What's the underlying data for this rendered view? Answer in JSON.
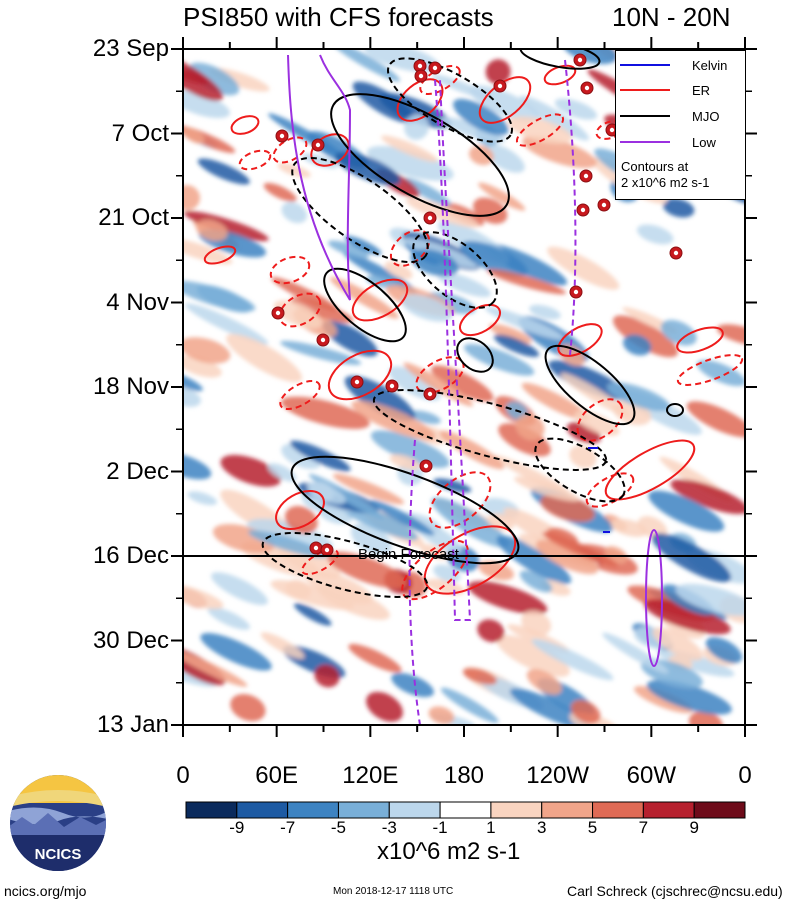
{
  "title": "PSI850 with CFS forecasts",
  "region": "10N - 20N",
  "chart_data": {
    "type": "heatmap",
    "description_free": true,
    "y_ticks": [
      "23 Sep",
      "7 Oct",
      "21 Oct",
      "4 Nov",
      "18 Nov",
      "2 Dec",
      "16 Dec",
      "30 Dec",
      "13 Jan"
    ],
    "x_ticks": [
      "0",
      "60E",
      "120E",
      "180",
      "120W",
      "60W",
      "0"
    ],
    "x_range_deg": [
      0,
      360
    ],
    "forecast_start": "16 Dec",
    "forecast_label": "Begin Forecast",
    "colorbar_labels": [
      "-9",
      "-7",
      "-5",
      "-3",
      "-1",
      "1",
      "3",
      "5",
      "7",
      "9"
    ],
    "colorbar_colors": [
      "#0a2a5c",
      "#1d5aa3",
      "#3d83c2",
      "#79afd8",
      "#bcd7ec",
      "#ffffff",
      "#f9d4c0",
      "#f1a58a",
      "#df6a55",
      "#b6202e",
      "#6e0b1a"
    ],
    "units": "x10^6 m2 s-1",
    "legend": {
      "entries": [
        {
          "name": "Kelvin",
          "color": "#1010e0",
          "style": "solid"
        },
        {
          "name": "ER",
          "color": "#ee1c1c",
          "style": "solid"
        },
        {
          "name": "MJO",
          "color": "#000000",
          "style": "solid"
        },
        {
          "name": "Low",
          "color": "#9b30e0",
          "style": "solid"
        }
      ],
      "note_line1": "Contours at",
      "note_line2": "2 x10^6 m2 s-1"
    }
  },
  "footer": {
    "left": "ncics.org/mjo",
    "center": "Mon 2018-12-17 1118 UTC",
    "right": "Carl Schreck (cjschrec@ncsu.edu)"
  },
  "logo": {
    "text": "NCICS"
  }
}
